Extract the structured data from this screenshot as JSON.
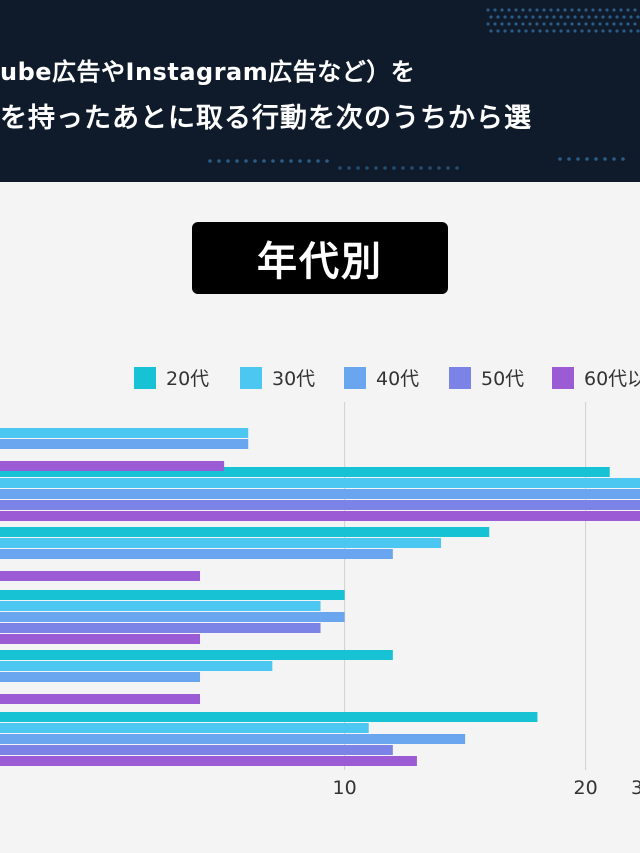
{
  "header": {
    "line1": "ube広告やInstagram広告など）を",
    "line2": "を持ったあとに取る行動を次のうちから選"
  },
  "badge": {
    "label": "年代別"
  },
  "chart_data": {
    "type": "bar",
    "orientation": "horizontal",
    "xlim": [
      -7,
      30
    ],
    "xticks": [
      10,
      20,
      "3"
    ],
    "grid": true,
    "legend_position": "top",
    "series": [
      {
        "name": "20代",
        "color": "#16c2d3",
        "values": [
          null,
          21,
          16,
          10,
          12,
          18
        ]
      },
      {
        "name": "30代",
        "color": "#4cc7f2",
        "values": [
          6,
          30,
          14,
          9,
          7,
          11
        ]
      },
      {
        "name": "40代",
        "color": "#6aa5ef",
        "values": [
          6,
          30,
          12,
          10,
          4,
          15
        ]
      },
      {
        "name": "50代",
        "color": "#7c83e6",
        "values": [
          null,
          30,
          null,
          9,
          null,
          12
        ]
      },
      {
        "name": "60代以",
        "color": "#9b5bd4",
        "values": [
          5,
          30,
          4,
          4,
          4,
          13
        ]
      }
    ]
  }
}
